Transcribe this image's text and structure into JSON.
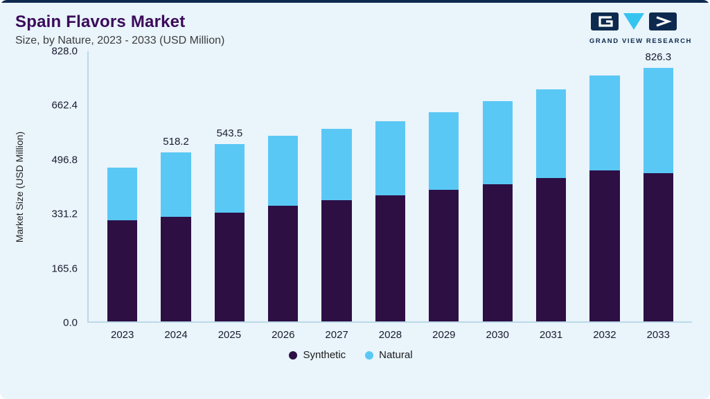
{
  "page": {
    "title": "Spain Flavors Market",
    "subtitle": "Size, by Nature, 2023 - 2033 (USD Million)",
    "logo_text": "GRAND VIEW RESEARCH"
  },
  "colors": {
    "synthetic": "#2d0f44",
    "natural": "#5ac8f5",
    "title": "#3b0a59",
    "card_background": "#e9f4fb",
    "top_strip": "#0d2a4e",
    "axis_line": "#bcd9e8"
  },
  "chart_data": {
    "type": "bar",
    "stacked": true,
    "title": "Spain Flavors Market Size, by Nature, 2023 - 2033 (USD Million)",
    "xlabel": "",
    "ylabel": "Market Size (USD Million)",
    "ylim": [
      0,
      828
    ],
    "ytick_labels": [
      "0.0",
      "165.6",
      "331.2",
      "496.8",
      "662.4",
      "828.0"
    ],
    "grid": false,
    "legend_position": "bottom",
    "categories": [
      "2023",
      "2024",
      "2025",
      "2026",
      "2027",
      "2028",
      "2029",
      "2030",
      "2031",
      "2032",
      "2033"
    ],
    "series": [
      {
        "name": "Synthetic",
        "color": "#2d0f44",
        "values": [
          311.0,
          321.0,
          334.0,
          354.0,
          371.0,
          387.0,
          403.0,
          420.0,
          440.0,
          463.0,
          484.0
        ]
      },
      {
        "name": "Natural",
        "color": "#5ac8f5",
        "values": [
          161.0,
          197.2,
          209.5,
          214.0,
          219.0,
          227.0,
          239.0,
          255.0,
          272.0,
          290.0,
          342.3
        ]
      }
    ],
    "totals": [
      472.0,
      518.2,
      543.5,
      568.0,
      590.0,
      614.0,
      642.0,
      675.0,
      712.0,
      753.0,
      826.3
    ],
    "point_labels": [
      "",
      "518.2",
      "543.5",
      "",
      "",
      "",
      "",
      "",
      "",
      "",
      "826.3"
    ]
  }
}
